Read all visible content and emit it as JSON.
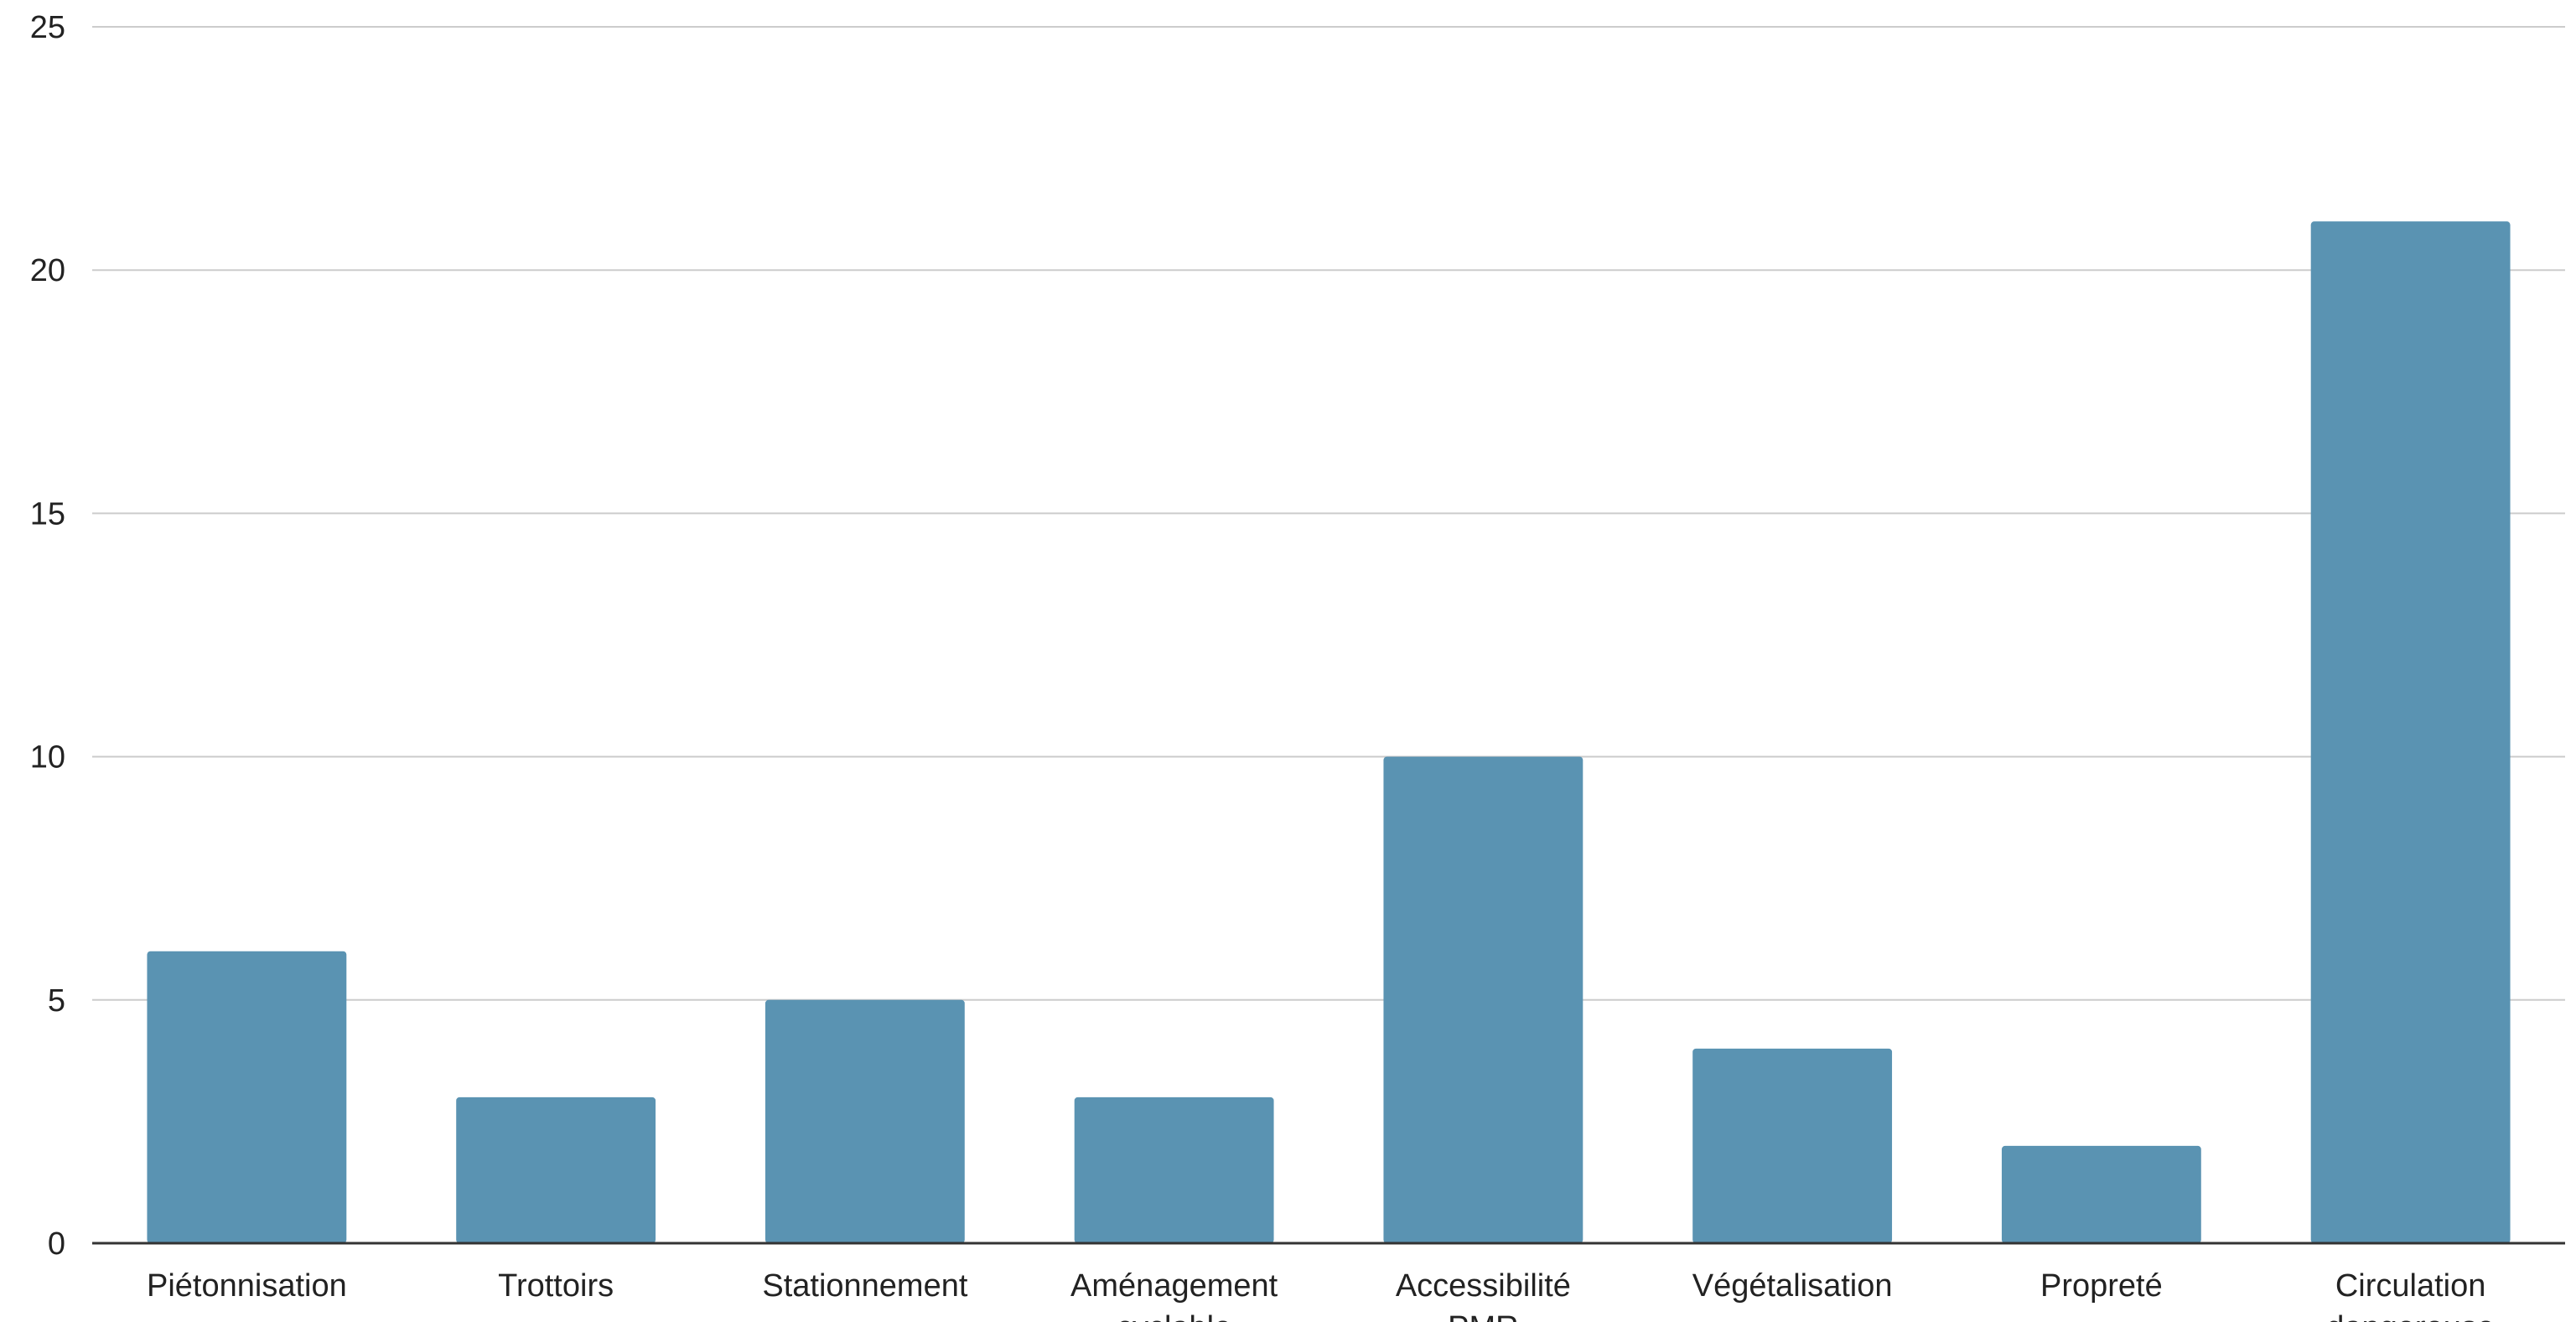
{
  "chart_data": {
    "type": "bar",
    "categories": [
      "Piétonnisation",
      "Trottoirs",
      "Stationnement",
      "Aménagement cyclable",
      "Accessibilité PMR",
      "Végétalisation",
      "Propreté",
      "Circulation dangereuse"
    ],
    "values": [
      6,
      3,
      5,
      3,
      10,
      4,
      2,
      21
    ],
    "title": "",
    "xlabel": "",
    "ylabel": "",
    "ylim": [
      0,
      25
    ],
    "yticks": [
      0,
      5,
      10,
      15,
      20,
      25
    ],
    "grid": true,
    "legend": "none",
    "colors": {
      "bar": "#5a93b2",
      "grid": "#cccccc",
      "axis": "#333333"
    }
  }
}
